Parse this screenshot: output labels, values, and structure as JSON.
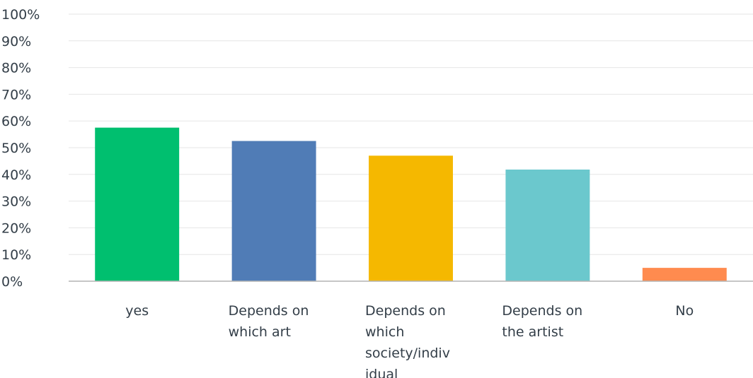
{
  "chart_data": {
    "type": "bar",
    "title": "",
    "xlabel": "",
    "ylabel": "",
    "ylim": [
      0,
      100
    ],
    "yticks": [
      "0%",
      "10%",
      "20%",
      "30%",
      "40%",
      "50%",
      "60%",
      "70%",
      "80%",
      "90%",
      "100%"
    ],
    "grid": true,
    "categories": [
      [
        "yes"
      ],
      [
        "Depends on",
        "which art"
      ],
      [
        "Depends on",
        "which",
        "society/indiv",
        "idual"
      ],
      [
        "Depends on",
        "the artist"
      ],
      [
        "No"
      ]
    ],
    "values": [
      57.5,
      52.5,
      47.0,
      41.8,
      5.0
    ],
    "colors": [
      "#00bf6f",
      "#507cb6",
      "#f5b800",
      "#6bc8cd",
      "#ff8b4f"
    ]
  }
}
